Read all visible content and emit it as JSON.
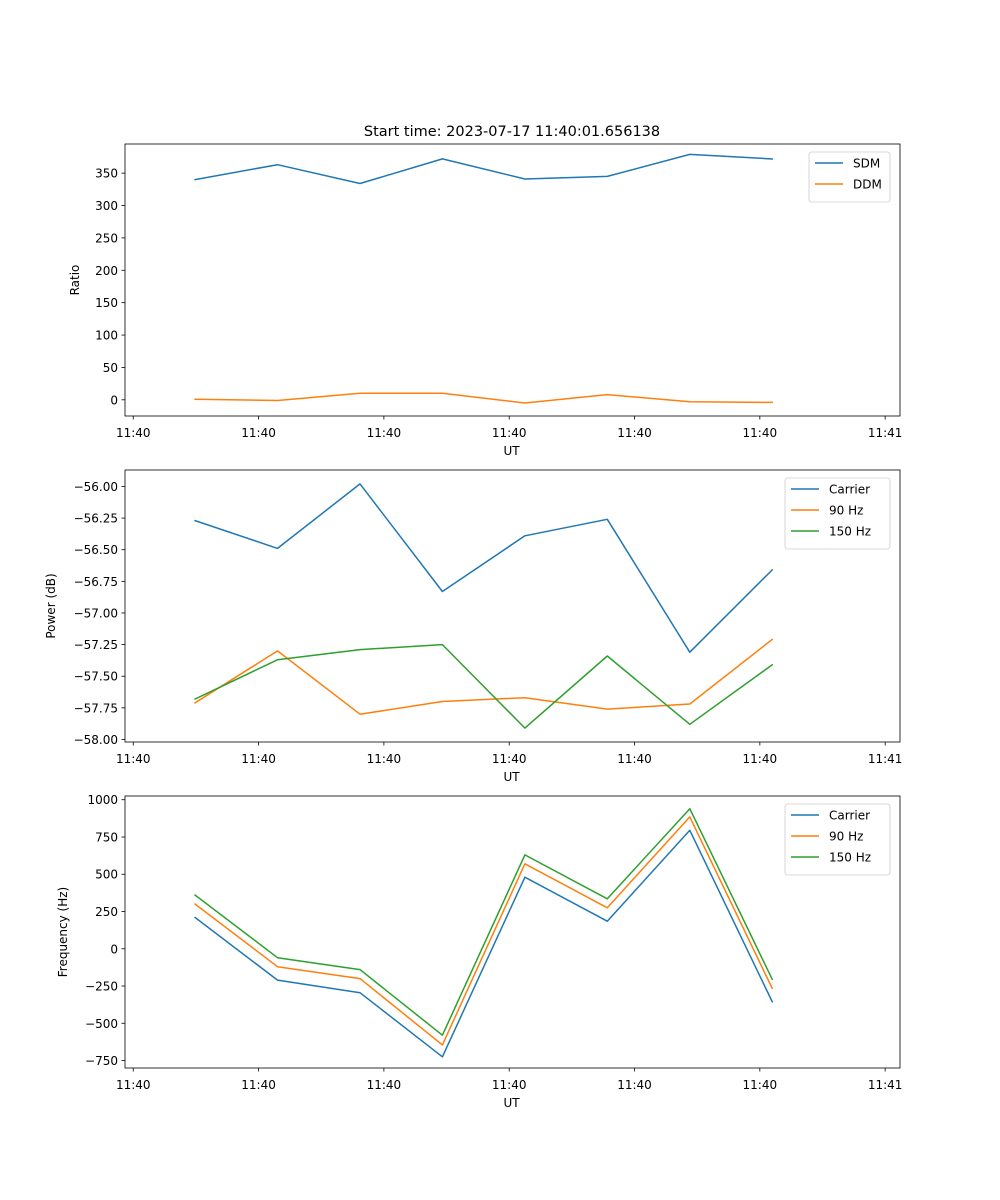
{
  "title": "Start time: 2023-07-17 11:40:01.656138",
  "colors": {
    "blue": "#1f77b4",
    "orange": "#ff7f0e",
    "green": "#2ca02c"
  },
  "chart_data": [
    {
      "type": "line",
      "title": "Start time: 2023-07-17 11:40:01.656138",
      "xlabel": "UT",
      "ylabel": "Ratio",
      "xlim": [
        -0.85,
        8.55
      ],
      "ylim": [
        -25,
        395
      ],
      "x": [
        0,
        1,
        2,
        3,
        4,
        5,
        6,
        7
      ],
      "xticks": [
        {
          "pos": -0.75,
          "label": "11:40"
        },
        {
          "pos": 0.77,
          "label": "11:40"
        },
        {
          "pos": 2.29,
          "label": "11:40"
        },
        {
          "pos": 3.81,
          "label": "11:40"
        },
        {
          "pos": 5.33,
          "label": "11:40"
        },
        {
          "pos": 6.85,
          "label": "11:40"
        },
        {
          "pos": 8.37,
          "label": "11:41"
        }
      ],
      "yticks": [
        {
          "value": 0,
          "label": "0"
        },
        {
          "value": 50,
          "label": "50"
        },
        {
          "value": 100,
          "label": "100"
        },
        {
          "value": 150,
          "label": "150"
        },
        {
          "value": 200,
          "label": "200"
        },
        {
          "value": 250,
          "label": "250"
        },
        {
          "value": 300,
          "label": "300"
        },
        {
          "value": 350,
          "label": "350"
        }
      ],
      "legend": "top-right",
      "series": [
        {
          "name": "SDM",
          "color": "#1f77b4",
          "values": [
            340,
            363,
            334,
            372,
            341,
            345,
            379,
            372
          ]
        },
        {
          "name": "DDM",
          "color": "#ff7f0e",
          "values": [
            1,
            -1,
            10,
            10,
            -5,
            8,
            -3,
            -4
          ]
        }
      ]
    },
    {
      "type": "line",
      "title": "",
      "xlabel": "UT",
      "ylabel": "Power (dB)",
      "xlim": [
        -0.85,
        8.55
      ],
      "ylim": [
        -58.02,
        -55.87
      ],
      "x": [
        0,
        1,
        2,
        3,
        4,
        5,
        6,
        7
      ],
      "xticks": [
        {
          "pos": -0.75,
          "label": "11:40"
        },
        {
          "pos": 0.77,
          "label": "11:40"
        },
        {
          "pos": 2.29,
          "label": "11:40"
        },
        {
          "pos": 3.81,
          "label": "11:40"
        },
        {
          "pos": 5.33,
          "label": "11:40"
        },
        {
          "pos": 6.85,
          "label": "11:40"
        },
        {
          "pos": 8.37,
          "label": "11:41"
        }
      ],
      "yticks": [
        {
          "value": -58.0,
          "label": "−58.00"
        },
        {
          "value": -57.75,
          "label": "−57.75"
        },
        {
          "value": -57.5,
          "label": "−57.50"
        },
        {
          "value": -57.25,
          "label": "−57.25"
        },
        {
          "value": -57.0,
          "label": "−57.00"
        },
        {
          "value": -56.75,
          "label": "−56.75"
        },
        {
          "value": -56.5,
          "label": "−56.50"
        },
        {
          "value": -56.25,
          "label": "−56.25"
        },
        {
          "value": -56.0,
          "label": "−56.00"
        }
      ],
      "legend": "top-right",
      "series": [
        {
          "name": "Carrier",
          "color": "#1f77b4",
          "values": [
            -56.27,
            -56.49,
            -55.98,
            -56.83,
            -56.39,
            -56.26,
            -57.31,
            -56.66
          ]
        },
        {
          "name": "90 Hz",
          "color": "#ff7f0e",
          "values": [
            -57.71,
            -57.3,
            -57.8,
            -57.7,
            -57.67,
            -57.76,
            -57.72,
            -57.21
          ]
        },
        {
          "name": "150 Hz",
          "color": "#2ca02c",
          "values": [
            -57.68,
            -57.37,
            -57.29,
            -57.25,
            -57.91,
            -57.34,
            -57.88,
            -57.41
          ]
        }
      ]
    },
    {
      "type": "line",
      "title": "",
      "xlabel": "UT",
      "ylabel": "Frequency (Hz)",
      "xlim": [
        -0.85,
        8.55
      ],
      "ylim": [
        -800,
        1025
      ],
      "x": [
        0,
        1,
        2,
        3,
        4,
        5,
        6,
        7
      ],
      "xticks": [
        {
          "pos": -0.75,
          "label": "11:40"
        },
        {
          "pos": 0.77,
          "label": "11:40"
        },
        {
          "pos": 2.29,
          "label": "11:40"
        },
        {
          "pos": 3.81,
          "label": "11:40"
        },
        {
          "pos": 5.33,
          "label": "11:40"
        },
        {
          "pos": 6.85,
          "label": "11:40"
        },
        {
          "pos": 8.37,
          "label": "11:41"
        }
      ],
      "yticks": [
        {
          "value": -750,
          "label": "−750"
        },
        {
          "value": -500,
          "label": "−500"
        },
        {
          "value": -250,
          "label": "−250"
        },
        {
          "value": 0,
          "label": "0"
        },
        {
          "value": 250,
          "label": "250"
        },
        {
          "value": 500,
          "label": "500"
        },
        {
          "value": 750,
          "label": "750"
        },
        {
          "value": 1000,
          "label": "1000"
        }
      ],
      "legend": "top-right",
      "series": [
        {
          "name": "Carrier",
          "color": "#1f77b4",
          "values": [
            210,
            -210,
            -295,
            -725,
            480,
            185,
            795,
            -355
          ]
        },
        {
          "name": "90 Hz",
          "color": "#ff7f0e",
          "values": [
            300,
            -120,
            -200,
            -645,
            570,
            275,
            885,
            -265
          ]
        },
        {
          "name": "150 Hz",
          "color": "#2ca02c",
          "values": [
            360,
            -60,
            -140,
            -580,
            630,
            335,
            940,
            -205
          ]
        }
      ]
    }
  ]
}
